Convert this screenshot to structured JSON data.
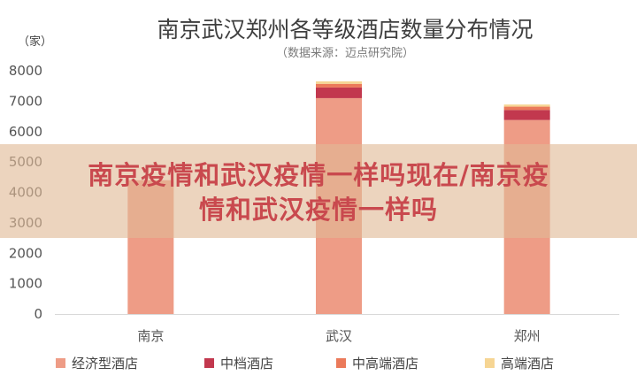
{
  "unit_label": "（家）",
  "banner": {
    "line1": "南京疫情和武汉疫情一样吗现在/南京疫",
    "line2": "情和武汉疫情一样吗"
  },
  "colors": {
    "经济型酒店": "#ee9c86",
    "中档酒店": "#c2384e",
    "中高端酒店": "#eb7a5a",
    "高端酒店": "#f6d593"
  },
  "chart_data": {
    "type": "bar",
    "stacked": true,
    "title": "南京武汉郑州各等级酒店数量分布情况",
    "subtitle": "（数据来源：迈点研究院）",
    "categories": [
      "南京",
      "武汉",
      "郑州"
    ],
    "series": [
      {
        "name": "经济型酒店",
        "values": [
          4400,
          7100,
          6380
        ]
      },
      {
        "name": "中档酒店",
        "values": [
          0,
          350,
          330
        ]
      },
      {
        "name": "中高端酒店",
        "values": [
          0,
          120,
          110
        ]
      },
      {
        "name": "高端酒店",
        "values": [
          0,
          80,
          70
        ]
      }
    ],
    "ylim": [
      0,
      8000
    ],
    "yticks": [
      0,
      1000,
      2000,
      3000,
      4000,
      5000,
      6000,
      7000,
      8000
    ],
    "grid": false,
    "legend": "bottom"
  }
}
